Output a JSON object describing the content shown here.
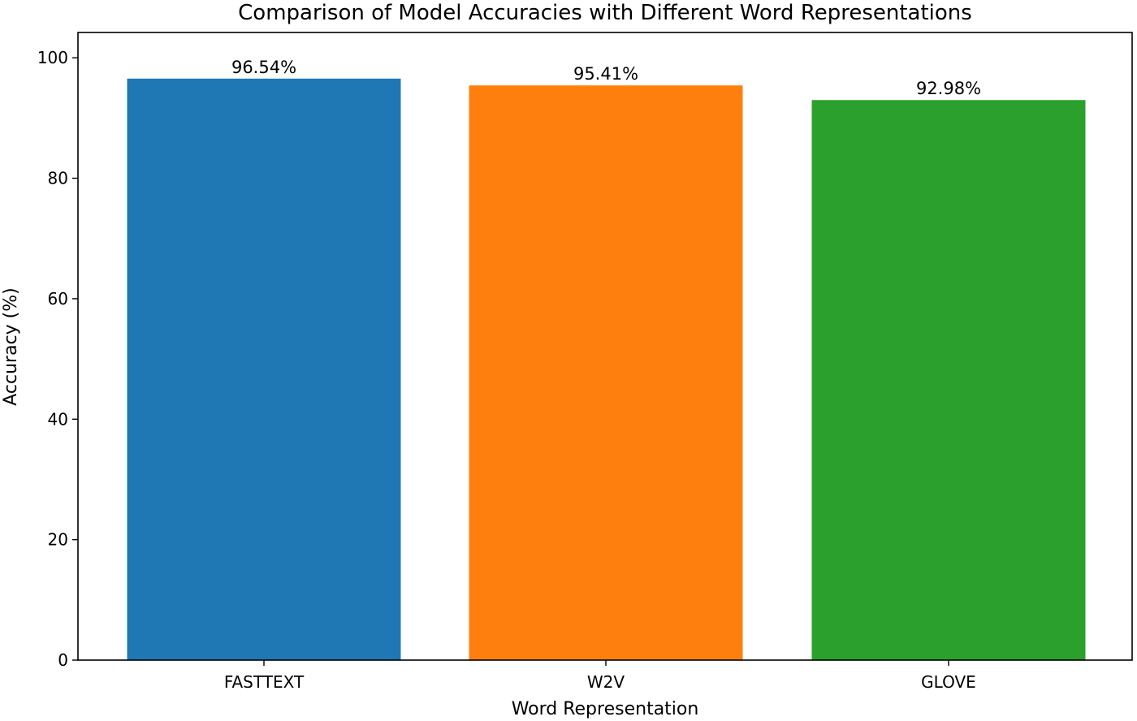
{
  "chart_data": {
    "type": "bar",
    "title": "Comparison of Model Accuracies with Different Word Representations",
    "xlabel": "Word Representation",
    "ylabel": "Accuracy (%)",
    "categories": [
      "FASTTEXT",
      "W2V",
      "GLOVE"
    ],
    "values": [
      96.54,
      95.41,
      92.98
    ],
    "data_labels": [
      "96.54%",
      "95.41%",
      "92.98%"
    ],
    "colors": [
      "#1f77b4",
      "#ff7f0e",
      "#2ca02c"
    ],
    "ylim": [
      0,
      100
    ],
    "yticks": [
      0,
      20,
      40,
      60,
      80,
      100
    ],
    "ytick_labels": [
      "0",
      "20",
      "40",
      "60",
      "80",
      "100"
    ],
    "grid": false,
    "legend": "none"
  }
}
